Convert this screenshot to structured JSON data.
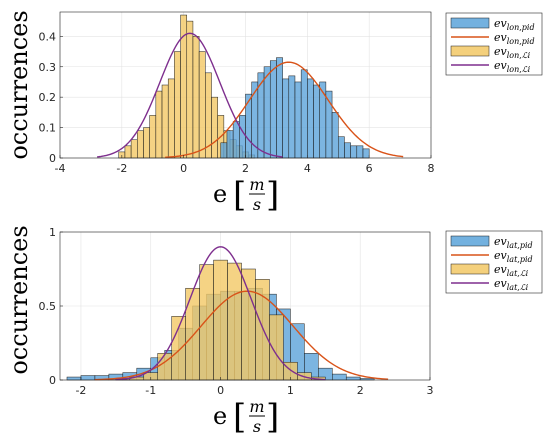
{
  "chart_data": [
    {
      "type": "histogram",
      "ylabel": "occurrences",
      "xlabel": {
        "var": "e",
        "num": "m",
        "den": "s"
      },
      "xlim": [
        -4,
        8
      ],
      "ylim": [
        0,
        0.48
      ],
      "xticks": [
        "-4",
        "-2",
        "0",
        "2",
        "4",
        "6",
        "8"
      ],
      "yticks": [
        "0",
        "0.1",
        "0.2",
        "0.3",
        "0.4"
      ],
      "grid": true,
      "legend_position": "outside-right",
      "legend": [
        {
          "base": "ev",
          "sub": "lon,pid",
          "kind": "bar",
          "color": "#5BA3D9"
        },
        {
          "base": "ev",
          "sub": "lon,pid",
          "kind": "line",
          "color": "#D95319"
        },
        {
          "base": "ev",
          "sub": "lon,ℒi",
          "kind": "bar",
          "color": "#F2C865"
        },
        {
          "base": "ev",
          "sub": "lon,ℒi",
          "kind": "line",
          "color": "#7E2F8E"
        }
      ],
      "series": [
        {
          "kind": "bars",
          "fill": "#F2C865",
          "edges": [
            -2.1,
            -1.9,
            -1.7,
            -1.5,
            -1.3,
            -1.1,
            -0.9,
            -0.7,
            -0.5,
            -0.3,
            -0.1,
            0.1,
            0.3,
            0.5,
            0.7,
            0.9,
            1.1,
            1.3,
            1.5,
            1.7,
            1.9,
            2.1,
            2.3
          ],
          "values": [
            0.02,
            0.04,
            0.06,
            0.09,
            0.1,
            0.14,
            0.22,
            0.24,
            0.26,
            0.35,
            0.47,
            0.45,
            0.4,
            0.35,
            0.28,
            0.2,
            0.14,
            0.09,
            0.06,
            0.04,
            0.02,
            0.01
          ]
        },
        {
          "kind": "bars",
          "fill": "#5BA3D9",
          "edges": [
            1.2,
            1.4,
            1.6,
            1.8,
            2.0,
            2.2,
            2.4,
            2.6,
            2.8,
            3.0,
            3.2,
            3.4,
            3.6,
            3.8,
            4.0,
            4.2,
            4.4,
            4.6,
            4.8,
            5.0,
            5.2,
            5.4,
            5.6,
            5.8,
            6.0
          ],
          "values": [
            0.05,
            0.09,
            0.12,
            0.14,
            0.21,
            0.25,
            0.28,
            0.3,
            0.32,
            0.33,
            0.26,
            0.27,
            0.25,
            0.29,
            0.26,
            0.24,
            0.25,
            0.22,
            0.15,
            0.07,
            0.05,
            0.04,
            0.04,
            0.03
          ]
        },
        {
          "kind": "curve",
          "color": "#D95319",
          "mu": 3.4,
          "sigma": 1.27,
          "peak": 0.315,
          "range": [
            -0.6,
            7.1
          ]
        },
        {
          "kind": "curve",
          "color": "#7E2F8E",
          "mu": 0.2,
          "sigma": 0.97,
          "peak": 0.41,
          "range": [
            -2.8,
            3.2
          ]
        }
      ]
    },
    {
      "type": "histogram",
      "ylabel": "occurrences",
      "xlabel": {
        "var": "e",
        "num": "m",
        "den": "s"
      },
      "xlim": [
        -2.3,
        3
      ],
      "ylim": [
        0,
        1
      ],
      "xticks": [
        "-2",
        "-1",
        "0",
        "1",
        "2",
        "3"
      ],
      "yticks": [
        "0",
        "0.5",
        "1"
      ],
      "grid": true,
      "legend_position": "outside-right",
      "legend": [
        {
          "base": "ev",
          "sub": "lat,pid",
          "kind": "bar",
          "color": "#5BA3D9"
        },
        {
          "base": "ev",
          "sub": "lat,pid",
          "kind": "line",
          "color": "#D95319"
        },
        {
          "base": "ev",
          "sub": "lat,ℒi",
          "kind": "bar",
          "color": "#F2C865"
        },
        {
          "base": "ev",
          "sub": "lat,ℒi",
          "kind": "line",
          "color": "#7E2F8E"
        }
      ],
      "series": [
        {
          "kind": "bars",
          "fill": "#5BA3D9",
          "edges": [
            -2.2,
            -2.0,
            -1.8,
            -1.6,
            -1.4,
            -1.2,
            -1.0,
            -0.8,
            -0.6,
            -0.4,
            -0.2,
            0.0,
            0.2,
            0.4,
            0.6,
            0.8,
            1.0,
            1.2,
            1.4,
            1.6,
            1.8,
            2.0,
            2.2
          ],
          "values": [
            0.02,
            0.03,
            0.03,
            0.04,
            0.05,
            0.08,
            0.15,
            0.2,
            0.35,
            0.5,
            0.58,
            0.6,
            0.6,
            0.62,
            0.58,
            0.48,
            0.38,
            0.18,
            0.08,
            0.04,
            0.02,
            0.01
          ]
        },
        {
          "kind": "bars",
          "fill": "#F2C865",
          "edges": [
            -1.5,
            -1.3,
            -1.1,
            -0.9,
            -0.7,
            -0.5,
            -0.3,
            -0.1,
            0.1,
            0.3,
            0.5,
            0.7,
            0.9,
            1.1,
            1.3,
            1.5
          ],
          "values": [
            0.01,
            0.02,
            0.05,
            0.18,
            0.43,
            0.62,
            0.78,
            0.81,
            0.79,
            0.75,
            0.68,
            0.44,
            0.12,
            0.05,
            0.02
          ]
        },
        {
          "kind": "curve",
          "color": "#D95319",
          "mu": 0.38,
          "sigma": 0.66,
          "peak": 0.6,
          "range": [
            -1.8,
            2.4
          ]
        },
        {
          "kind": "curve",
          "color": "#7E2F8E",
          "mu": 0.0,
          "sigma": 0.44,
          "peak": 0.9,
          "range": [
            -1.5,
            1.5
          ]
        }
      ]
    }
  ]
}
